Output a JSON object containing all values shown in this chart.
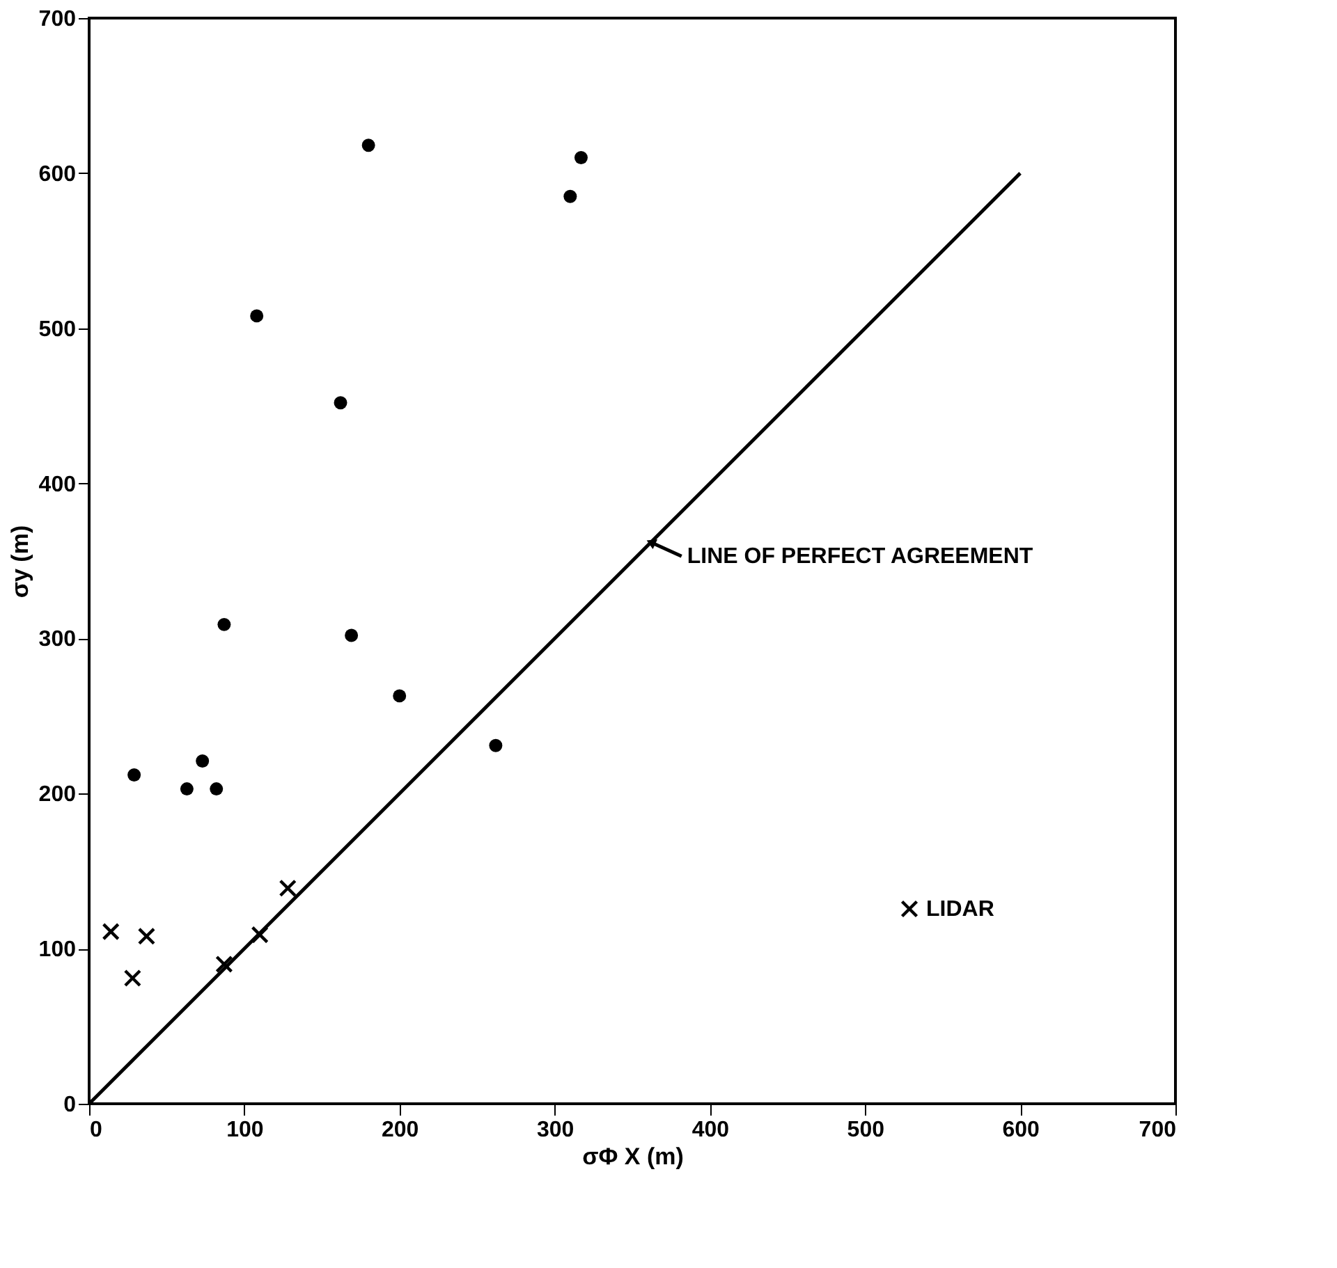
{
  "chart_data": {
    "type": "scatter",
    "xlabel": "σΦ X (m)",
    "ylabel": "σy (m)",
    "xlim": [
      0,
      700
    ],
    "ylim": [
      0,
      700
    ],
    "xticks": [
      0,
      100,
      200,
      300,
      400,
      500,
      600,
      700
    ],
    "yticks": [
      0,
      100,
      200,
      300,
      400,
      500,
      600,
      700
    ],
    "grid": false,
    "legend": "bottom right",
    "series": [
      {
        "marker": "circle",
        "color": "#000000",
        "x": [
          180,
          317,
          310,
          108,
          162,
          87,
          169,
          200,
          262,
          29,
          63,
          73,
          82
        ],
        "values": [
          618,
          610,
          585,
          508,
          452,
          309,
          302,
          263,
          231,
          212,
          203,
          221,
          203
        ]
      },
      {
        "name": "LIDAR",
        "marker": "cross",
        "color": "#000000",
        "x": [
          14,
          37,
          28,
          87,
          110,
          128
        ],
        "values": [
          111,
          108,
          81,
          90,
          109,
          139
        ]
      },
      {
        "type": "line",
        "color": "#000000",
        "line_style": "solid",
        "x": [
          0,
          600
        ],
        "values": [
          0,
          600
        ]
      }
    ],
    "annotations": [
      {
        "text": "LINE OF PERFECT AGREEMENT",
        "x": 362,
        "y": 362
      }
    ]
  }
}
